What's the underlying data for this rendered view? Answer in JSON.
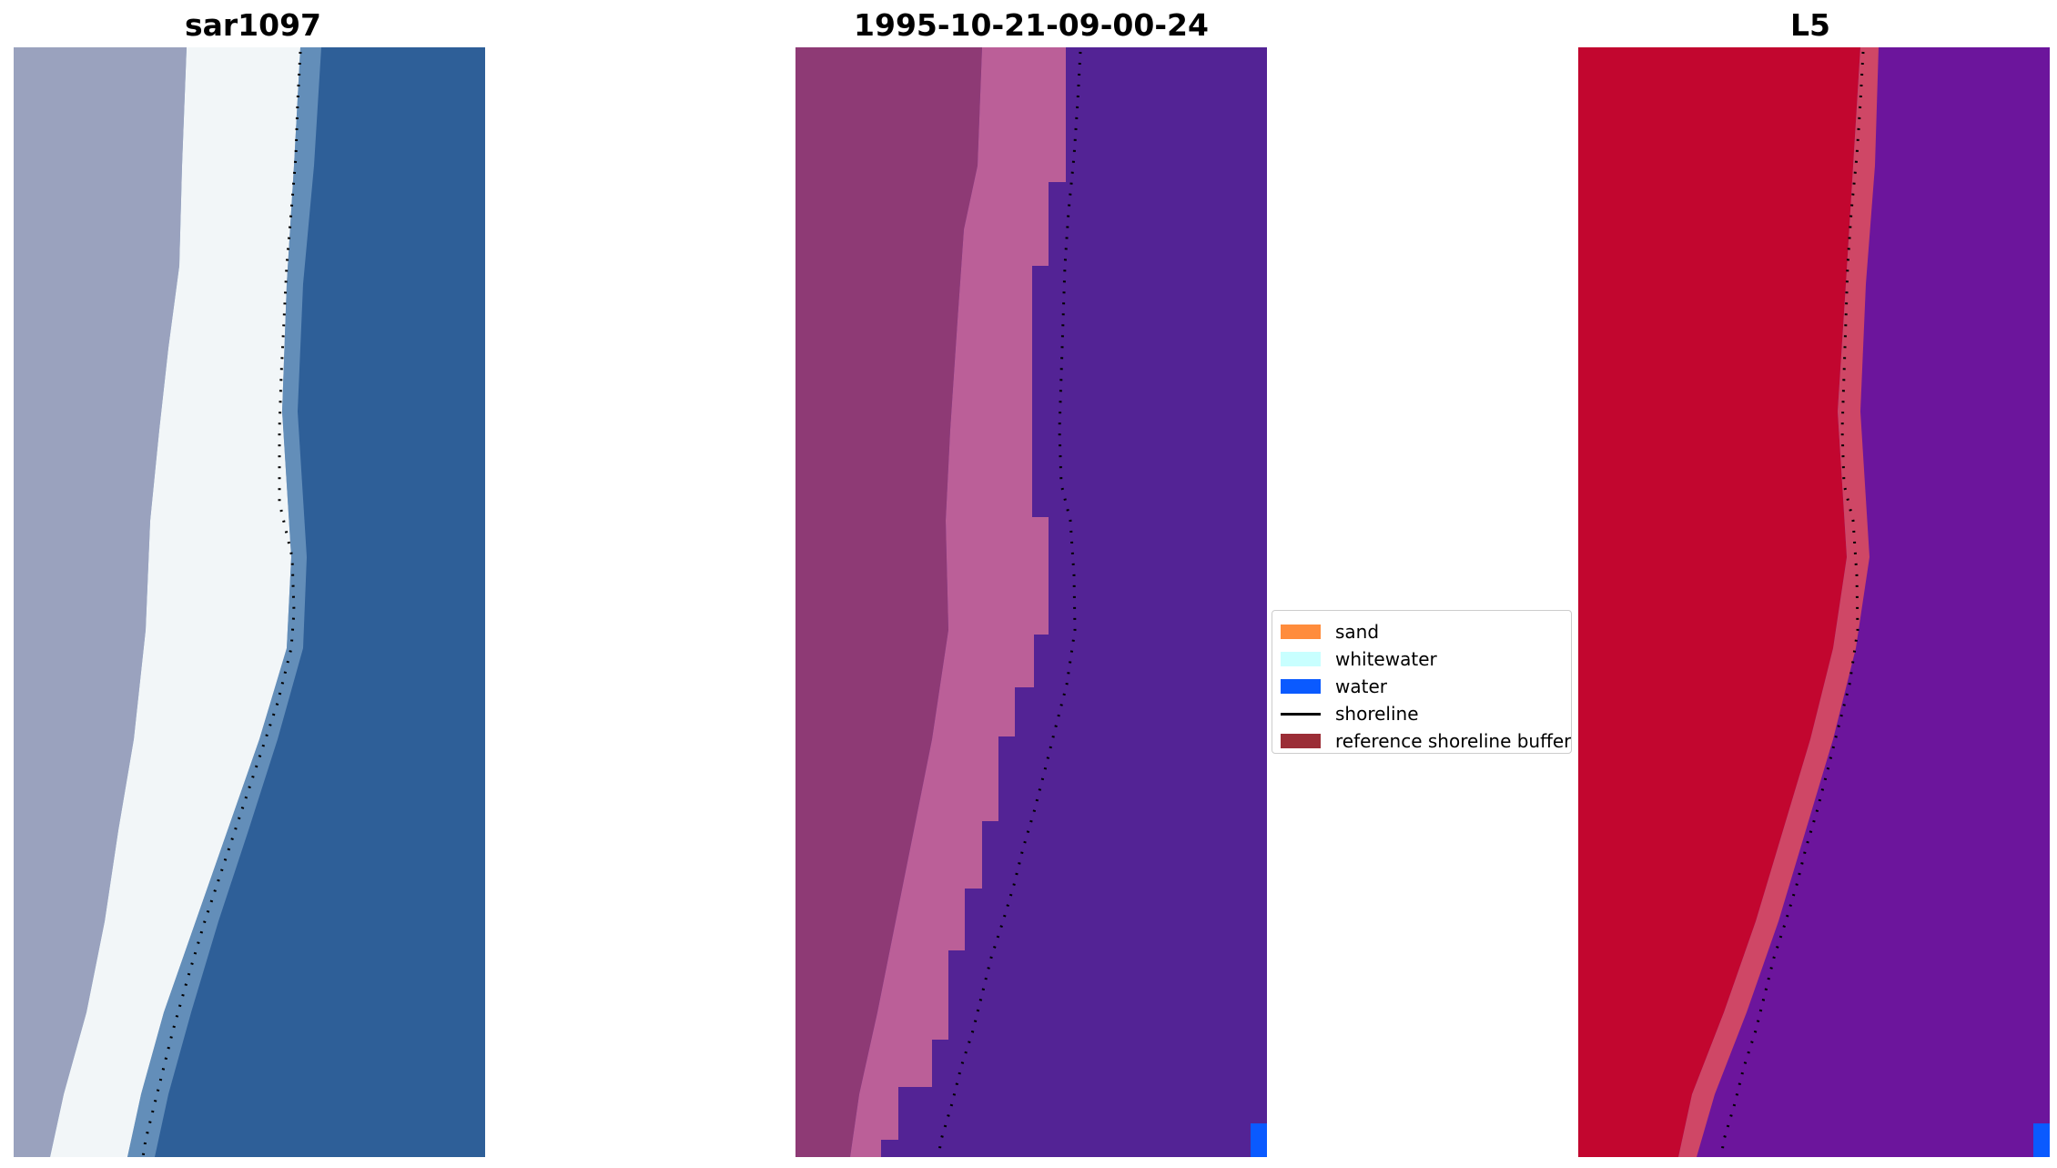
{
  "panels": [
    {
      "title": "sar1097"
    },
    {
      "title": "1995-10-21-09-00-24"
    },
    {
      "title": "L5"
    }
  ],
  "legend": {
    "items": [
      {
        "label": "sand",
        "color": "#ff8c3c",
        "kind": "patch"
      },
      {
        "label": "whitewater",
        "color": "#c8ffff",
        "kind": "patch"
      },
      {
        "label": "water",
        "color": "#0a5aff",
        "kind": "patch"
      },
      {
        "label": "shoreline",
        "color": "#000000",
        "kind": "line"
      },
      {
        "label": "reference shoreline buffer",
        "color": "#9b2d36",
        "kind": "patch"
      }
    ]
  },
  "colors": {
    "rgb_land": "#9aa2be",
    "rgb_beach": "#f2f6f8",
    "rgb_water": "#2e5f98",
    "class_land": "#8e3a75",
    "class_beach": "#bb5f98",
    "class_water": "#532395",
    "mndwi_land": "#c2062f",
    "mndwi_beach": "#cf4766",
    "mndwi_water": "#6c159c",
    "water_pixel": "#0a5aff",
    "shoreline_dots": "#000000"
  }
}
